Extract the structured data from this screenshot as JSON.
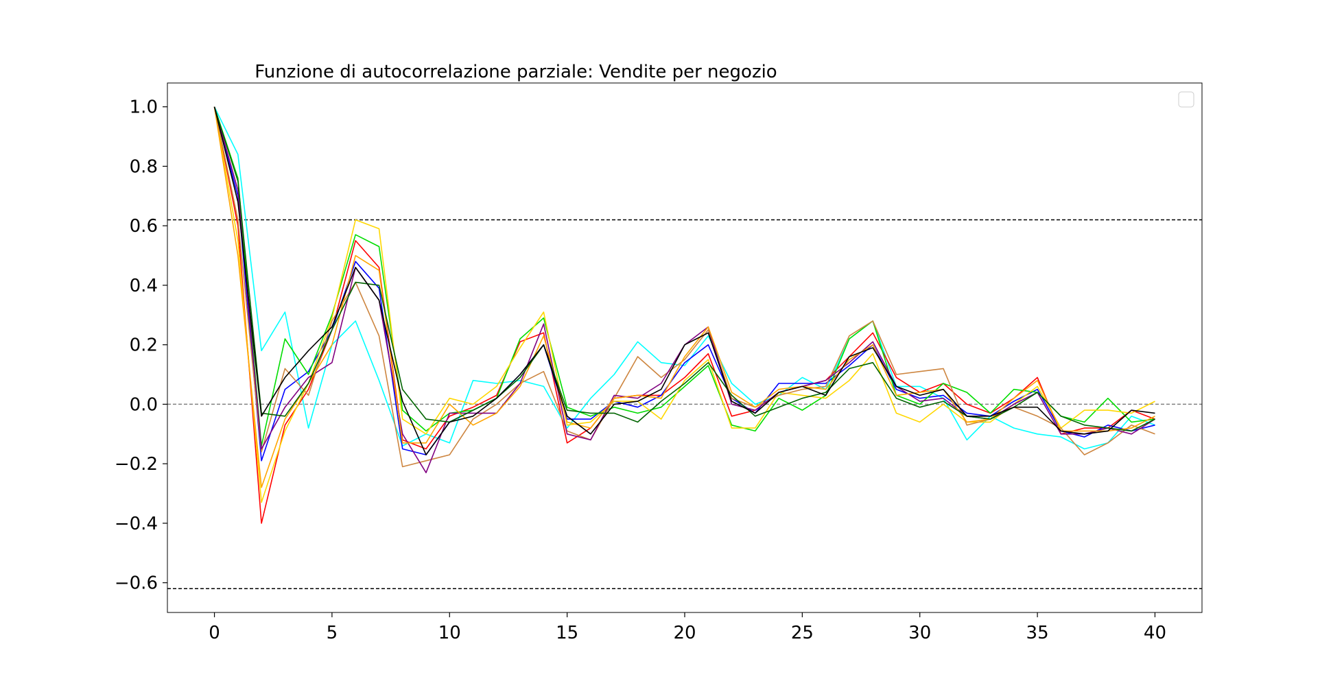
{
  "chart_data": {
    "type": "line",
    "title": "Funzione di autocorrelazione parziale: Vendite per negozio",
    "xlabel": "",
    "ylabel": "",
    "xlim": [
      -2,
      42
    ],
    "ylim": [
      -0.7,
      1.08
    ],
    "x_ticks": [
      0,
      5,
      10,
      15,
      20,
      25,
      30,
      35,
      40
    ],
    "y_ticks": [
      1.0,
      0.8,
      0.6,
      0.4,
      0.2,
      0.0,
      -0.2,
      -0.4,
      -0.6
    ],
    "y_tick_labels": [
      "1.0",
      "0.8",
      "0.6",
      "0.4",
      "0.2",
      "0.0",
      "−0.2",
      "−0.4",
      "−0.6"
    ],
    "confidence_bounds": [
      0.62,
      -0.62
    ],
    "zero_line": 0.0,
    "legend": {
      "placement": "top-right",
      "entries": []
    },
    "grid": false,
    "x": [
      0,
      1,
      2,
      3,
      4,
      5,
      6,
      7,
      8,
      9,
      10,
      11,
      12,
      13,
      14,
      15,
      16,
      17,
      18,
      19,
      20,
      21,
      22,
      23,
      24,
      25,
      26,
      27,
      28,
      29,
      30,
      31,
      32,
      33,
      34,
      35,
      36,
      37,
      38,
      39,
      40
    ],
    "series": [
      {
        "color": "#00ffff",
        "values": [
          1.0,
          0.84,
          0.18,
          0.31,
          -0.08,
          0.2,
          0.28,
          0.08,
          -0.14,
          -0.1,
          -0.13,
          0.08,
          0.07,
          0.08,
          0.06,
          -0.08,
          0.02,
          0.1,
          0.21,
          0.14,
          0.13,
          0.23,
          0.07,
          0.0,
          0.03,
          0.09,
          0.05,
          0.22,
          0.28,
          0.06,
          0.06,
          0.02,
          -0.12,
          -0.04,
          -0.08,
          -0.1,
          -0.11,
          -0.15,
          -0.13,
          -0.04,
          -0.07
        ]
      },
      {
        "color": "#ff0000",
        "values": [
          1.0,
          0.6,
          -0.4,
          -0.07,
          0.05,
          0.25,
          0.55,
          0.46,
          -0.12,
          -0.15,
          -0.04,
          -0.01,
          0.03,
          0.21,
          0.24,
          -0.13,
          -0.08,
          0.02,
          0.03,
          0.03,
          0.09,
          0.17,
          -0.04,
          -0.02,
          0.04,
          0.06,
          0.08,
          0.16,
          0.24,
          0.09,
          0.04,
          0.07,
          0.0,
          -0.03,
          0.02,
          0.09,
          -0.1,
          -0.08,
          -0.08,
          -0.02,
          -0.05
        ]
      },
      {
        "color": "#0000ff",
        "values": [
          1.0,
          0.7,
          -0.19,
          0.05,
          0.11,
          0.25,
          0.48,
          0.39,
          -0.15,
          -0.17,
          -0.06,
          -0.02,
          0.02,
          0.1,
          0.2,
          -0.05,
          -0.05,
          0.01,
          -0.01,
          0.03,
          0.14,
          0.2,
          0.02,
          -0.03,
          0.07,
          0.07,
          0.07,
          0.13,
          0.2,
          0.05,
          0.02,
          0.03,
          -0.03,
          -0.04,
          0.01,
          0.05,
          -0.09,
          -0.11,
          -0.07,
          -0.09,
          -0.07
        ]
      },
      {
        "color": "#00dd00",
        "values": [
          1.0,
          0.76,
          -0.14,
          0.22,
          0.1,
          0.3,
          0.57,
          0.53,
          -0.02,
          -0.09,
          -0.03,
          -0.02,
          0.02,
          0.22,
          0.29,
          -0.01,
          -0.04,
          -0.01,
          -0.03,
          -0.01,
          0.06,
          0.13,
          -0.07,
          -0.09,
          0.02,
          -0.02,
          0.03,
          0.22,
          0.28,
          0.03,
          0.0,
          0.07,
          0.04,
          -0.03,
          0.05,
          0.04,
          -0.04,
          -0.06,
          0.02,
          -0.06,
          -0.05
        ]
      },
      {
        "color": "#ffd700",
        "values": [
          1.0,
          0.55,
          -0.33,
          -0.09,
          0.07,
          0.29,
          0.62,
          0.59,
          -0.05,
          -0.1,
          0.02,
          0.0,
          0.06,
          0.19,
          0.31,
          -0.07,
          -0.06,
          0.01,
          0.01,
          -0.05,
          0.08,
          0.15,
          -0.08,
          -0.08,
          0.04,
          0.03,
          0.02,
          0.08,
          0.17,
          -0.03,
          -0.06,
          0.0,
          -0.06,
          -0.06,
          0.0,
          0.06,
          -0.08,
          -0.02,
          -0.02,
          -0.03,
          0.01
        ]
      },
      {
        "color": "#cd853f",
        "values": [
          1.0,
          0.62,
          -0.16,
          0.12,
          0.03,
          0.28,
          0.41,
          0.23,
          -0.21,
          -0.19,
          -0.17,
          -0.05,
          0.0,
          0.07,
          0.11,
          -0.09,
          -0.12,
          0.02,
          0.16,
          0.09,
          0.15,
          0.25,
          0.02,
          -0.01,
          0.03,
          0.05,
          0.06,
          0.23,
          0.28,
          0.1,
          0.11,
          0.12,
          -0.07,
          -0.05,
          -0.01,
          -0.04,
          -0.08,
          -0.17,
          -0.13,
          -0.07,
          -0.1
        ]
      },
      {
        "color": "#800080",
        "values": [
          1.0,
          0.72,
          -0.15,
          -0.01,
          0.09,
          0.14,
          0.46,
          0.35,
          -0.1,
          -0.23,
          -0.03,
          -0.03,
          -0.03,
          0.07,
          0.27,
          -0.1,
          -0.12,
          0.03,
          0.02,
          0.07,
          0.2,
          0.26,
          0.0,
          -0.02,
          0.04,
          0.06,
          0.08,
          0.14,
          0.21,
          0.06,
          0.01,
          0.02,
          -0.04,
          -0.05,
          0.0,
          0.04,
          -0.1,
          -0.1,
          -0.08,
          -0.1,
          -0.05
        ]
      },
      {
        "color": "#ffa500",
        "values": [
          1.0,
          0.5,
          -0.28,
          -0.05,
          0.07,
          0.2,
          0.5,
          0.45,
          -0.13,
          -0.13,
          0.0,
          -0.07,
          -0.03,
          0.06,
          0.23,
          -0.06,
          -0.08,
          0.02,
          0.03,
          0.02,
          0.16,
          0.26,
          0.04,
          -0.01,
          0.05,
          0.06,
          0.05,
          0.15,
          0.2,
          0.03,
          0.04,
          0.05,
          -0.06,
          -0.05,
          0.02,
          0.08,
          -0.09,
          -0.09,
          -0.09,
          -0.08,
          -0.04
        ]
      },
      {
        "color": "#006400",
        "values": [
          1.0,
          0.75,
          -0.03,
          -0.04,
          0.07,
          0.25,
          0.41,
          0.4,
          0.05,
          -0.05,
          -0.06,
          -0.02,
          0.02,
          0.09,
          0.2,
          -0.02,
          -0.03,
          -0.03,
          -0.06,
          0.01,
          0.07,
          0.14,
          0.03,
          -0.04,
          -0.01,
          0.02,
          0.04,
          0.12,
          0.14,
          0.02,
          -0.01,
          0.01,
          -0.04,
          -0.05,
          -0.01,
          0.04,
          -0.04,
          -0.07,
          -0.08,
          -0.09,
          -0.05
        ]
      },
      {
        "color": "#000000",
        "values": [
          1.0,
          0.68,
          -0.04,
          0.09,
          0.18,
          0.26,
          0.46,
          0.35,
          0.01,
          -0.17,
          -0.06,
          -0.04,
          0.02,
          0.1,
          0.2,
          -0.04,
          -0.1,
          0.0,
          0.01,
          0.05,
          0.2,
          0.24,
          0.01,
          -0.03,
          0.04,
          0.06,
          0.03,
          0.16,
          0.19,
          0.06,
          0.03,
          0.05,
          -0.04,
          -0.04,
          -0.01,
          -0.01,
          -0.09,
          -0.1,
          -0.09,
          -0.02,
          -0.03
        ]
      }
    ]
  }
}
